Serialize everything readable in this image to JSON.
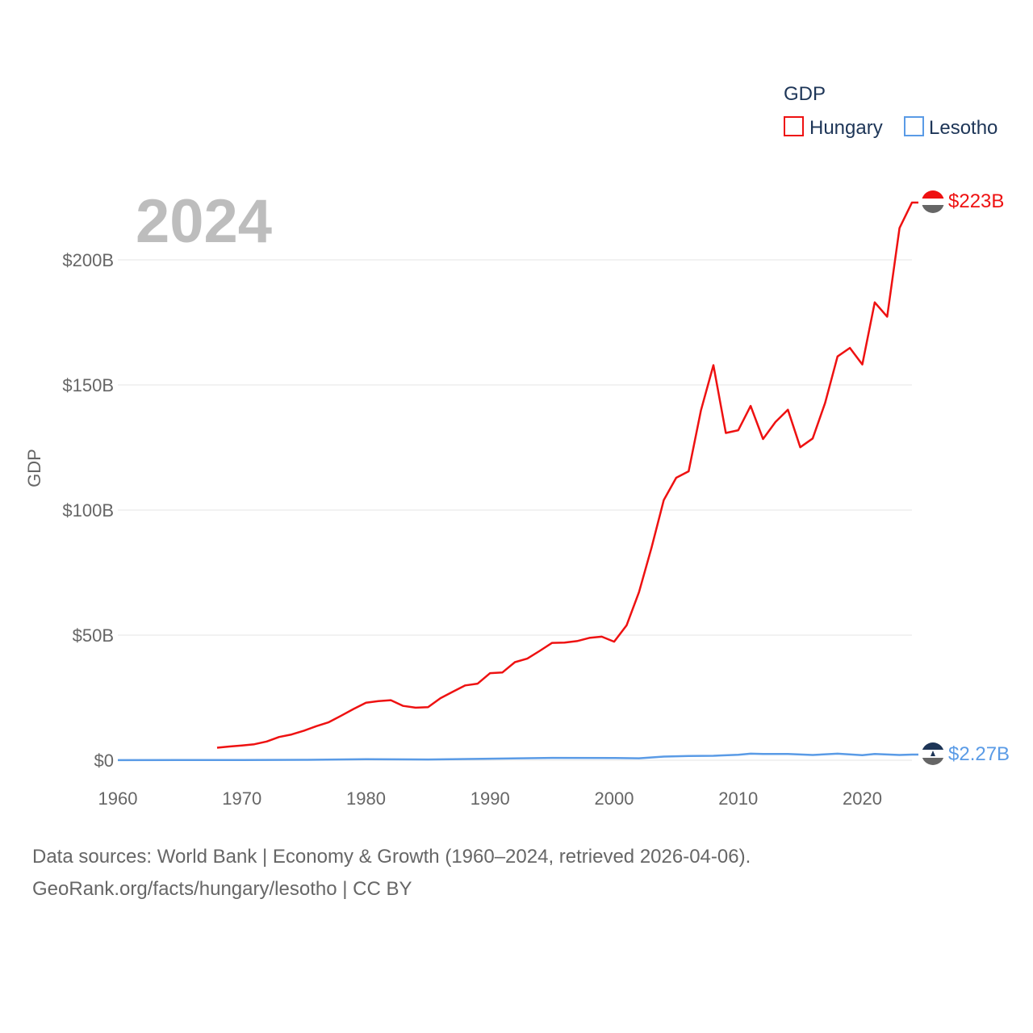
{
  "chart_data": {
    "type": "line",
    "title": "",
    "year_label": "2024",
    "ylabel": "GDP",
    "xlabel": "",
    "xlim": [
      1960,
      2024
    ],
    "ylim": [
      0,
      200000000000
    ],
    "y_ticks": [
      {
        "value": 0,
        "label": "$0"
      },
      {
        "value": 50000000000,
        "label": "$50B"
      },
      {
        "value": 100000000000,
        "label": "$100B"
      },
      {
        "value": 150000000000,
        "label": "$150B"
      },
      {
        "value": 200000000000,
        "label": "$200B"
      }
    ],
    "x_ticks": [
      {
        "value": 1960,
        "label": "1960"
      },
      {
        "value": 1970,
        "label": "1970"
      },
      {
        "value": 1980,
        "label": "1980"
      },
      {
        "value": 1990,
        "label": "1990"
      },
      {
        "value": 2000,
        "label": "2000"
      },
      {
        "value": 2010,
        "label": "2010"
      },
      {
        "value": 2020,
        "label": "2020"
      }
    ],
    "legend": {
      "title": "GDP",
      "position": "top-right"
    },
    "series": [
      {
        "name": "Hungary",
        "color": "#ee1111",
        "end_label": "$223B",
        "flag": "hungary-flag",
        "x": [
          1968,
          1969,
          1970,
          1971,
          1972,
          1973,
          1974,
          1975,
          1976,
          1977,
          1978,
          1979,
          1980,
          1981,
          1982,
          1983,
          1984,
          1985,
          1986,
          1987,
          1988,
          1989,
          1990,
          1991,
          1992,
          1993,
          1994,
          1995,
          1996,
          1997,
          1998,
          1999,
          2000,
          2001,
          2002,
          2003,
          2004,
          2005,
          2006,
          2007,
          2008,
          2009,
          2010,
          2011,
          2012,
          2013,
          2014,
          2015,
          2016,
          2017,
          2018,
          2019,
          2020,
          2021,
          2022,
          2023,
          2024
        ],
        "values": [
          5.0,
          5.5,
          5.9,
          6.4,
          7.5,
          9.3,
          10.3,
          11.8,
          13.6,
          15.2,
          17.8,
          20.5,
          23.0,
          23.6,
          24.0,
          21.7,
          21.0,
          21.2,
          24.8,
          27.4,
          29.9,
          30.6,
          34.8,
          35.1,
          39.2,
          40.6,
          43.7,
          46.9,
          47.0,
          47.6,
          48.9,
          49.4,
          47.4,
          53.9,
          67.2,
          84.7,
          104.0,
          112.9,
          115.5,
          139.9,
          157.9,
          130.8,
          131.9,
          141.6,
          128.4,
          135.2,
          140.1,
          125.1,
          128.6,
          142.8,
          161.4,
          164.8,
          158.2,
          183.0,
          177.3,
          212.7,
          222.9
        ]
      },
      {
        "name": "Lesotho",
        "color": "#5a9be6",
        "end_label": "$2.27B",
        "flag": "lesotho-flag",
        "x": [
          1960,
          1965,
          1970,
          1975,
          1980,
          1985,
          1990,
          1995,
          2000,
          2002,
          2004,
          2006,
          2008,
          2010,
          2011,
          2012,
          2014,
          2016,
          2018,
          2020,
          2021,
          2022,
          2023,
          2024
        ],
        "values": [
          0.03,
          0.05,
          0.07,
          0.15,
          0.43,
          0.3,
          0.6,
          0.93,
          0.89,
          0.78,
          1.45,
          1.71,
          1.76,
          2.2,
          2.6,
          2.5,
          2.47,
          2.1,
          2.6,
          2.0,
          2.5,
          2.3,
          2.1,
          2.27
        ]
      }
    ]
  },
  "source": {
    "line1": "Data sources: World Bank | Economy & Growth (1960–2024, retrieved 2026-04-06).",
    "line2": "GeoRank.org/facts/hungary/lesotho | CC BY"
  }
}
